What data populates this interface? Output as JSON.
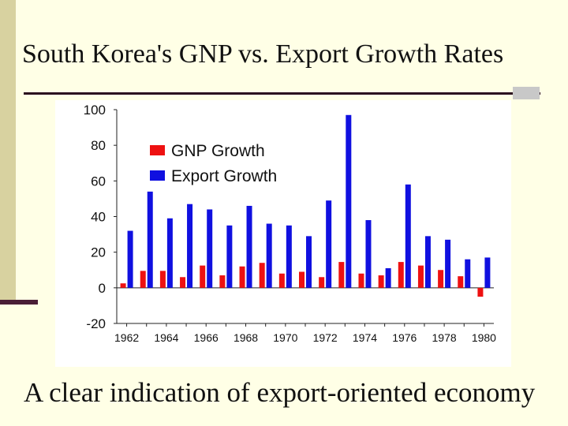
{
  "slide": {
    "title": "South Korea's GNP vs. Export Growth Rates",
    "caption": "A clear indication of export-oriented economy"
  },
  "colors": {
    "gnp": "#ee1111",
    "export": "#1010e0",
    "background": "#ffffe6",
    "accent": "#4a1e36"
  },
  "chart_data": {
    "type": "bar",
    "title": "",
    "xlabel": "",
    "ylabel": "",
    "ylim": [
      -20,
      100
    ],
    "yticks": [
      100,
      80,
      60,
      40,
      20,
      0,
      -20
    ],
    "categories": [
      "1962",
      "1963",
      "1964",
      "1965",
      "1966",
      "1967",
      "1968",
      "1969",
      "1970",
      "1971",
      "1972",
      "1973",
      "1974",
      "1975",
      "1976",
      "1977",
      "1978",
      "1979",
      "1980"
    ],
    "xtick_labels": [
      "1962",
      "1964",
      "1966",
      "1968",
      "1970",
      "1972",
      "1974",
      "1976",
      "1978",
      "1980"
    ],
    "legend_position": "upper-left",
    "series": [
      {
        "name": "GNP Growth",
        "values": [
          2.5,
          9.5,
          9.5,
          6,
          12.5,
          7,
          12,
          14,
          8,
          9,
          6,
          14.5,
          8,
          7,
          14.5,
          12.5,
          10,
          6.5,
          -5
        ]
      },
      {
        "name": "Export Growth",
        "values": [
          32,
          54,
          39,
          47,
          44,
          35,
          46,
          36,
          35,
          29,
          49,
          97,
          38,
          11,
          58,
          29,
          27,
          16,
          17
        ]
      }
    ]
  }
}
